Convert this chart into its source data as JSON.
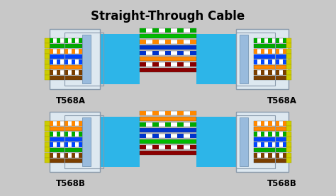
{
  "title": "Straight-Through Cable",
  "bg_color": "#c8c8c8",
  "cable_color": "#2db5e8",
  "connector_body_color": "#e8eef4",
  "connector_edge_color": "#8899aa",
  "connector_tab_color": "#99bbdd",
  "pin_label_color": "#dddd00",
  "diagram1_label_left": "T568A",
  "diagram1_label_right": "T568A",
  "diagram2_label_left": "T568B",
  "diagram2_label_right": "T568B",
  "t568a_wires": [
    [
      "#ffffff",
      "#00aa00"
    ],
    [
      "#00aa00",
      "#00aa00"
    ],
    [
      "#ffffff",
      "#ff8800"
    ],
    [
      "#0044ff",
      "#0044ff"
    ],
    [
      "#ffffff",
      "#0044ff"
    ],
    [
      "#ff8800",
      "#ff8800"
    ],
    [
      "#ffffff",
      "#7B3F00"
    ],
    [
      "#7B3F00",
      "#7B3F00"
    ]
  ],
  "t568b_wires": [
    [
      "#ffffff",
      "#ff8800"
    ],
    [
      "#ff8800",
      "#ff8800"
    ],
    [
      "#ffffff",
      "#00aa00"
    ],
    [
      "#0044ff",
      "#0044ff"
    ],
    [
      "#ffffff",
      "#0044ff"
    ],
    [
      "#00aa00",
      "#00aa00"
    ],
    [
      "#ffffff",
      "#7B3F00"
    ],
    [
      "#7B3F00",
      "#7B3F00"
    ]
  ],
  "t568a_center": [
    [
      "#ffffff",
      "#00aa00",
      true
    ],
    [
      "#00bb00",
      "#00bb00",
      false
    ],
    [
      "#ffffff",
      "#ff8800",
      true
    ],
    [
      "#0033cc",
      "#0033cc",
      false
    ],
    [
      "#ffffff",
      "#0033cc",
      true
    ],
    [
      "#ff8800",
      "#ff8800",
      false
    ],
    [
      "#ffffff",
      "#880000",
      true
    ],
    [
      "#8B0000",
      "#8B0000",
      false
    ]
  ],
  "t568b_center": [
    [
      "#ffffff",
      "#ff8800",
      true
    ],
    [
      "#ff8800",
      "#ff8800",
      false
    ],
    [
      "#ffffff",
      "#00aa00",
      true
    ],
    [
      "#0033cc",
      "#0033cc",
      false
    ],
    [
      "#ffffff",
      "#0033cc",
      true
    ],
    [
      "#00bb00",
      "#00bb00",
      false
    ],
    [
      "#ffffff",
      "#880000",
      true
    ],
    [
      "#8B0000",
      "#8B0000",
      false
    ]
  ]
}
